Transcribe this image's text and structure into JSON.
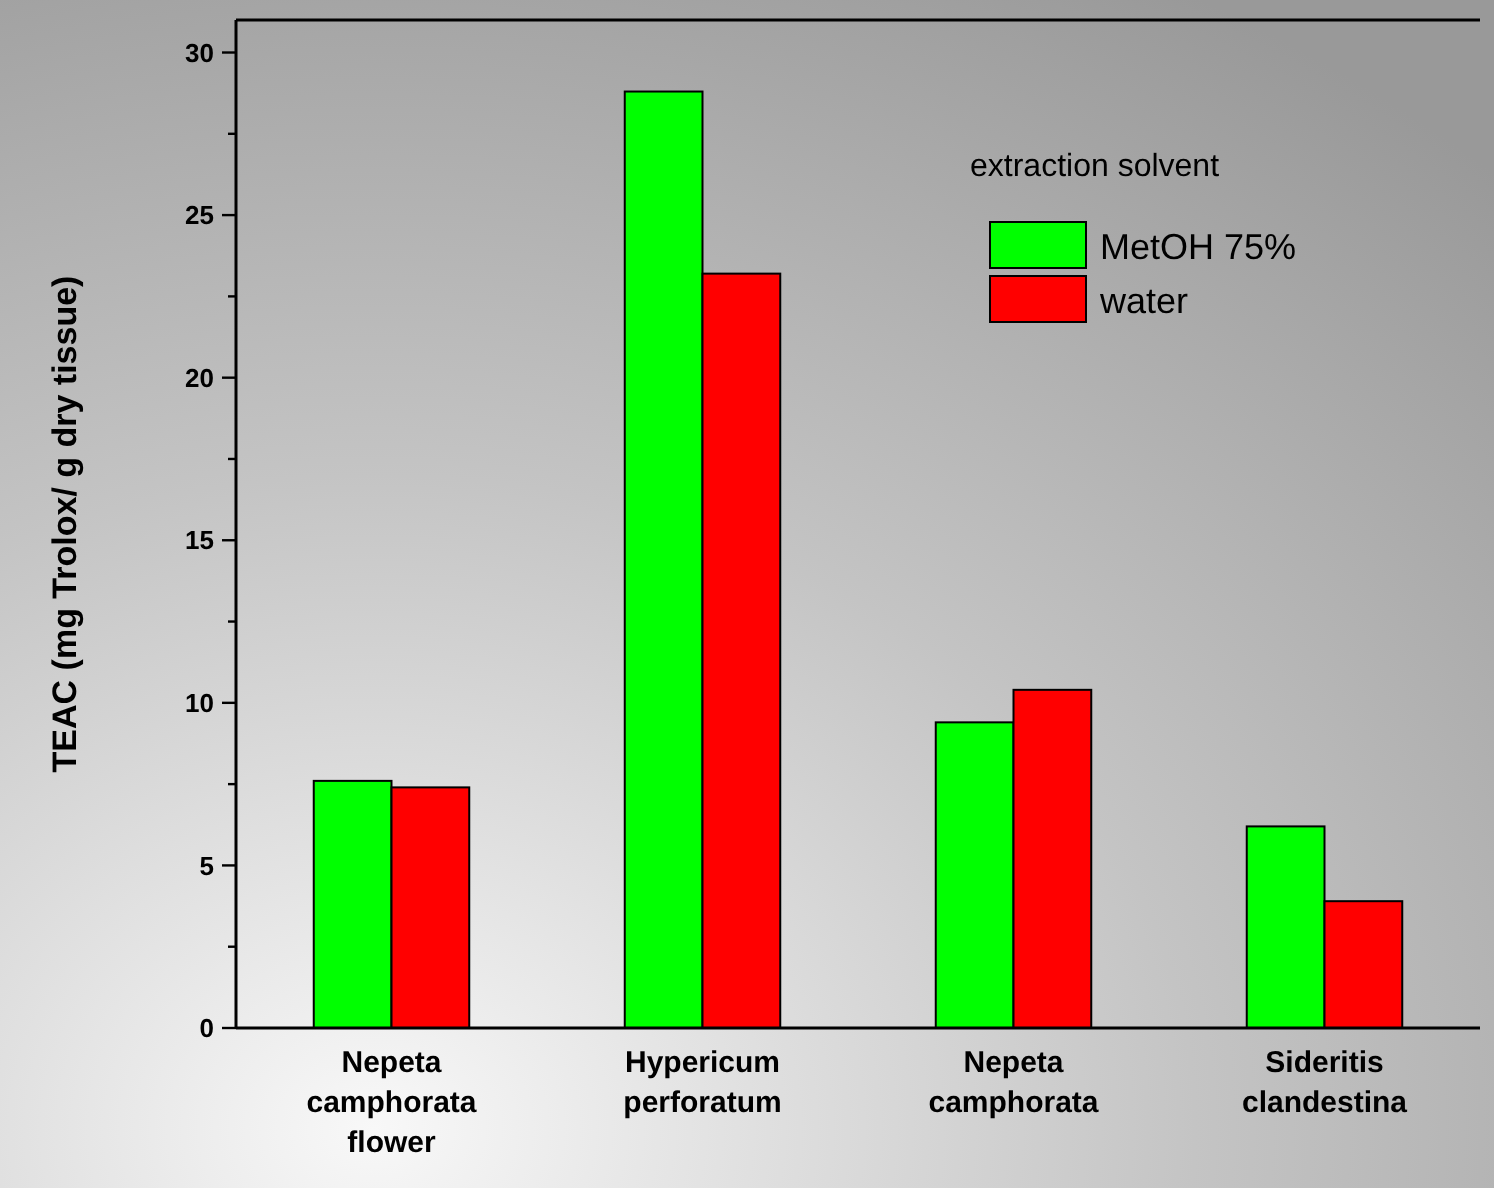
{
  "chart_data": {
    "type": "bar",
    "ylabel": "TEAC (mg Trolox/ g dry tissue)",
    "legend_title": "extraction solvent",
    "categories": [
      "Nepeta camphorata flower",
      "Hypericum perforatum",
      "Nepeta camphorata",
      "Sideritis clandestina"
    ],
    "series": [
      {
        "name": "MetOH 75%",
        "color": "#00ff00",
        "values": [
          7.6,
          28.8,
          9.4,
          6.2
        ]
      },
      {
        "name": "water",
        "color": "#ff0000",
        "values": [
          7.4,
          23.2,
          10.4,
          3.9
        ]
      }
    ],
    "ylim": [
      0,
      31
    ],
    "yticks": [
      0,
      {
        "value": 2.5,
        "label": null
      },
      5,
      {
        "value": 7.5,
        "label": null
      },
      10,
      {
        "value": 12.5,
        "label": null
      },
      15,
      {
        "value": 17.5,
        "label": null
      },
      20,
      {
        "value": 22.5,
        "label": null
      },
      25,
      {
        "value": 27.5,
        "label": null
      },
      30
    ],
    "legend": "top right",
    "grid": false
  }
}
